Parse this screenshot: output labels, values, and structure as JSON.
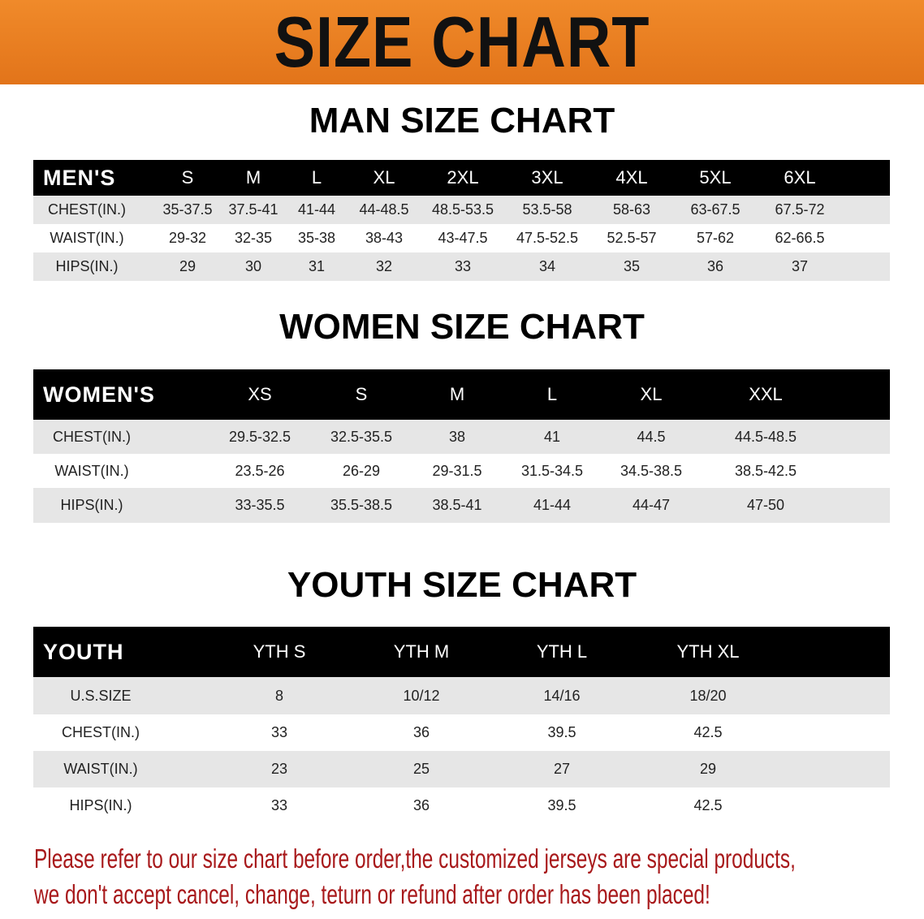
{
  "banner_title": "SIZE CHART",
  "colors": {
    "banner": "#e8791e",
    "header_row": "#000000",
    "stripe": "#e6e6e6",
    "notice": "#a8191b"
  },
  "men": {
    "title": "MAN SIZE CHART",
    "header": [
      "MEN'S",
      "S",
      "M",
      "L",
      "XL",
      "2XL",
      "3XL",
      "4XL",
      "5XL",
      "6XL"
    ],
    "rows": [
      [
        "CHEST(IN.)",
        "35-37.5",
        "37.5-41",
        "41-44",
        "44-48.5",
        "48.5-53.5",
        "53.5-58",
        "58-63",
        "63-67.5",
        "67.5-72"
      ],
      [
        "WAIST(IN.)",
        "29-32",
        "32-35",
        "35-38",
        "38-43",
        "43-47.5",
        "47.5-52.5",
        "52.5-57",
        "57-62",
        "62-66.5"
      ],
      [
        "HIPS(IN.)",
        "29",
        "30",
        "31",
        "32",
        "33",
        "34",
        "35",
        "36",
        "37"
      ]
    ]
  },
  "women": {
    "title": "WOMEN SIZE CHART",
    "header": [
      "WOMEN'S",
      "XS",
      "S",
      "M",
      "L",
      "XL",
      "XXL"
    ],
    "rows": [
      [
        "CHEST(IN.)",
        "29.5-32.5",
        "32.5-35.5",
        "38",
        "41",
        "44.5",
        "44.5-48.5"
      ],
      [
        "WAIST(IN.)",
        "23.5-26",
        "26-29",
        "29-31.5",
        "31.5-34.5",
        "34.5-38.5",
        "38.5-42.5"
      ],
      [
        "HIPS(IN.)",
        "33-35.5",
        "35.5-38.5",
        "38.5-41",
        "41-44",
        "44-47",
        "47-50"
      ]
    ]
  },
  "youth": {
    "title": "YOUTH SIZE CHART",
    "header": [
      "YOUTH",
      "YTH S",
      "YTH M",
      "YTH L",
      "YTH XL"
    ],
    "rows": [
      [
        "U.S.SIZE",
        "8",
        "10/12",
        "14/16",
        "18/20"
      ],
      [
        "CHEST(IN.)",
        "33",
        "36",
        "39.5",
        "42.5"
      ],
      [
        "WAIST(IN.)",
        "23",
        "25",
        "27",
        "29"
      ],
      [
        "HIPS(IN.)",
        "33",
        "36",
        "39.5",
        "42.5"
      ]
    ]
  },
  "notice": [
    "Please refer to our size chart before order,the customized jerseys are special products,",
    "we don't accept cancel, change, teturn or refund after order has been placed!"
  ]
}
